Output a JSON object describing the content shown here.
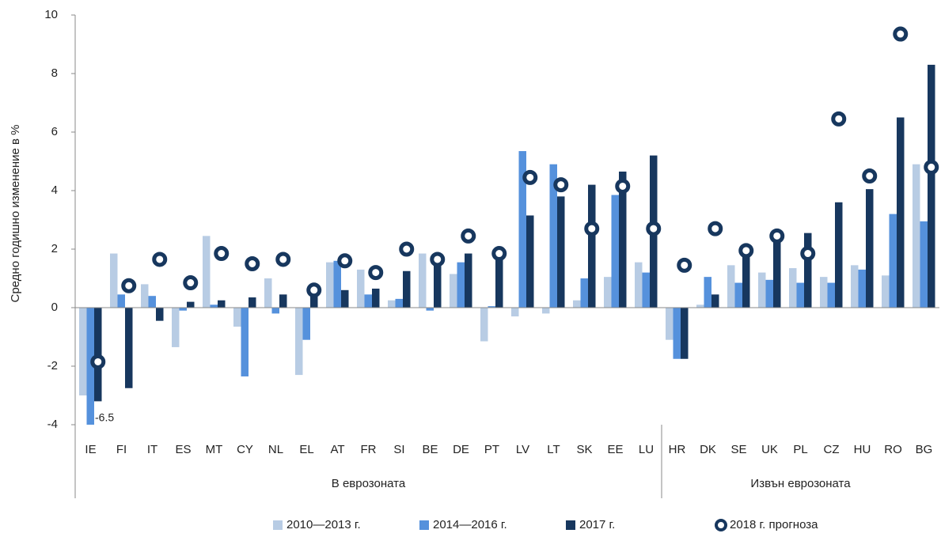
{
  "chart_data": {
    "type": "bar",
    "y_label": "Средно годишно изменение в %",
    "categories": [
      "IE",
      "FI",
      "IT",
      "ES",
      "MT",
      "CY",
      "NL",
      "EL",
      "AT",
      "FR",
      "SI",
      "BE",
      "DE",
      "PT",
      "LV",
      "LT",
      "SK",
      "EE",
      "LU",
      "HR",
      "DK",
      "SE",
      "UK",
      "PL",
      "CZ",
      "HU",
      "RO",
      "BG"
    ],
    "groups": [
      {
        "label": "В еврозоната",
        "count": 19
      },
      {
        "label": "Извън еврозоната",
        "count": 9
      }
    ],
    "series": [
      {
        "name": "2010—2013 г.",
        "color": "#b8cce4",
        "values": [
          -3.0,
          1.85,
          0.8,
          -1.35,
          2.45,
          -0.65,
          1.0,
          -2.3,
          1.55,
          1.3,
          0.25,
          1.85,
          1.15,
          -1.15,
          -0.3,
          -0.2,
          0.25,
          1.05,
          1.55,
          -1.1,
          0.1,
          1.45,
          1.2,
          1.35,
          1.05,
          1.45,
          1.1,
          4.9
        ]
      },
      {
        "name": "2014—2016 г.",
        "color": "#5591dc",
        "values": [
          -6.5,
          0.45,
          0.4,
          -0.1,
          0.1,
          -2.35,
          -0.2,
          -1.1,
          1.6,
          0.45,
          0.3,
          -0.1,
          1.55,
          0.05,
          5.35,
          4.9,
          1.0,
          3.85,
          1.2,
          -1.75,
          1.05,
          0.85,
          0.95,
          0.85,
          0.85,
          1.3,
          3.2,
          2.95
        ],
        "value_labels": [
          "-6.5",
          null,
          null,
          null,
          null,
          null,
          null,
          null,
          null,
          null,
          null,
          null,
          null,
          null,
          null,
          null,
          null,
          null,
          null,
          null,
          null,
          null,
          null,
          null,
          null,
          null,
          null,
          null
        ]
      },
      {
        "name": "2017 г.",
        "color": "#17375e",
        "values": [
          -3.2,
          -2.75,
          -0.45,
          0.2,
          0.25,
          0.35,
          0.45,
          0.5,
          0.6,
          0.65,
          1.25,
          1.7,
          1.85,
          1.8,
          3.15,
          3.8,
          4.2,
          4.65,
          5.2,
          -1.75,
          0.45,
          1.95,
          2.4,
          2.55,
          3.6,
          4.05,
          6.5,
          8.3
        ]
      },
      {
        "name": "2018 г. прогноза",
        "color": "#17375e",
        "type": "marker",
        "values": [
          -1.85,
          0.75,
          1.65,
          0.85,
          1.85,
          1.5,
          1.65,
          0.6,
          1.6,
          1.2,
          2.0,
          1.65,
          2.45,
          1.85,
          4.45,
          4.2,
          2.7,
          4.15,
          2.7,
          1.45,
          2.7,
          1.95,
          2.45,
          1.85,
          6.45,
          4.5,
          9.35,
          4.8
        ]
      }
    ],
    "ylim": [
      -4,
      10
    ],
    "yticks": [
      -4,
      -2,
      0,
      2,
      4,
      6,
      8,
      10
    ]
  }
}
